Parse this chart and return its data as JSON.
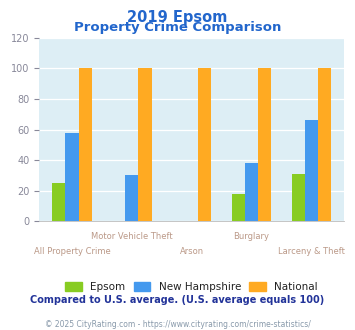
{
  "title_line1": "2019 Epsom",
  "title_line2": "Property Crime Comparison",
  "categories": [
    "All Property Crime",
    "Motor Vehicle Theft",
    "Arson",
    "Burglary",
    "Larceny & Theft"
  ],
  "series": {
    "Epsom": [
      25,
      0,
      0,
      18,
      31
    ],
    "New Hampshire": [
      58,
      30,
      0,
      38,
      66
    ],
    "National": [
      100,
      100,
      100,
      100,
      100
    ]
  },
  "colors": {
    "Epsom": "#88cc22",
    "New Hampshire": "#4499ee",
    "National": "#ffaa22"
  },
  "ylim": [
    0,
    120
  ],
  "yticks": [
    0,
    20,
    40,
    60,
    80,
    100,
    120
  ],
  "bar_width": 0.22,
  "title_color": "#2266cc",
  "bg_color": "#ddeef5",
  "grid_color": "#ffffff",
  "xlabel_color": "#bb9988",
  "tick_color": "#888899",
  "note_text": "Compared to U.S. average. (U.S. average equals 100)",
  "footer_text": "© 2025 CityRating.com - https://www.cityrating.com/crime-statistics/",
  "note_color": "#223399",
  "footer_color": "#8899aa",
  "legend_text_color": "#222222"
}
